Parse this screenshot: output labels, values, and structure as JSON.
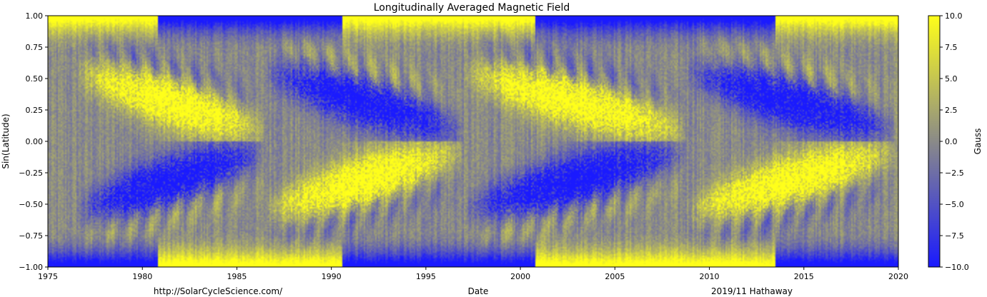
{
  "chart_data": {
    "type": "heatmap",
    "title": "Longitudinally Averaged Magnetic Field",
    "xlabel": "Date",
    "ylabel": "Sin(Latitude)",
    "xlim": [
      1975,
      2020
    ],
    "ylim": [
      -1.0,
      1.0
    ],
    "x_ticks": [
      1975,
      1980,
      1985,
      1990,
      1995,
      2000,
      2005,
      2010,
      2015,
      2020
    ],
    "x_tick_labels": [
      "1975",
      "1980",
      "1985",
      "1990",
      "1995",
      "2000",
      "2005",
      "2010",
      "2015",
      "2020"
    ],
    "y_ticks": [
      1.0,
      0.75,
      0.5,
      0.25,
      0.0,
      -0.25,
      -0.5,
      -0.75,
      -1.0
    ],
    "y_tick_labels": [
      "1.00",
      "0.75",
      "0.50",
      "0.25",
      "0.00",
      "−0.25",
      "−0.50",
      "−0.75",
      "−1.00"
    ],
    "colorbar": {
      "label": "Gauss",
      "range": [
        -10.0,
        10.0
      ],
      "ticks": [
        10.0,
        7.5,
        5.0,
        2.5,
        0.0,
        -2.5,
        -5.0,
        -7.5,
        -10.0
      ],
      "tick_labels": [
        "10.0",
        "7.5",
        "5.0",
        "2.5",
        "0.0",
        "−2.5",
        "−5.0",
        "−7.5",
        "−10.0"
      ],
      "colors": {
        "low": "#1a1aff",
        "mid": "#8a8a88",
        "high": "#ffff1a"
      }
    },
    "cycles": [
      {
        "start": 1976.5,
        "end": 1986.5,
        "north_sign": 1
      },
      {
        "start": 1986.5,
        "end": 1997.0,
        "north_sign": -1
      },
      {
        "start": 1997.0,
        "end": 2008.8,
        "north_sign": 1
      },
      {
        "start": 2008.8,
        "end": 2019.9,
        "north_sign": -1
      }
    ],
    "footer": {
      "left": "http://SolarCycleScience.com/",
      "right": "2019/11 Hathaway"
    },
    "grid": false
  }
}
